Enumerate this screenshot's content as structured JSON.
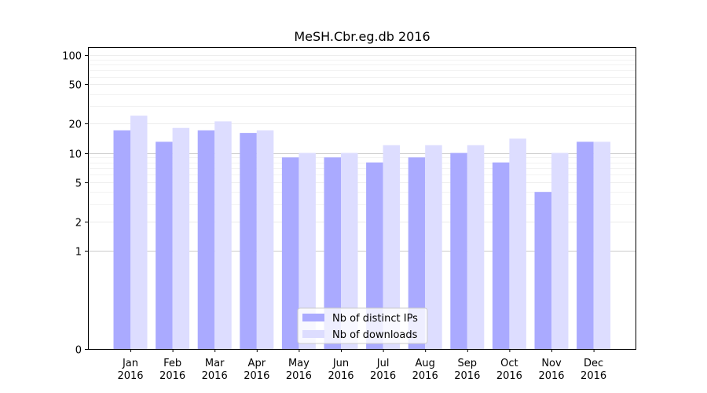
{
  "chart_data": {
    "type": "bar",
    "title": "MeSH.Cbr.eg.db 2016",
    "xlabel": "",
    "ylabel": "",
    "yscale": "symlog",
    "ylim": [
      0,
      120
    ],
    "yticks": [
      {
        "value": 0,
        "label": "0"
      },
      {
        "value": 1,
        "label": "1"
      },
      {
        "value": 2,
        "label": "2"
      },
      {
        "value": 5,
        "label": "5"
      },
      {
        "value": 10,
        "label": "10"
      },
      {
        "value": 20,
        "label": "20"
      },
      {
        "value": 50,
        "label": "50"
      },
      {
        "value": 100,
        "label": "100"
      }
    ],
    "grid": true,
    "legend_position": "bottom-center",
    "categories": [
      [
        "Jan",
        "2016"
      ],
      [
        "Feb",
        "2016"
      ],
      [
        "Mar",
        "2016"
      ],
      [
        "Apr",
        "2016"
      ],
      [
        "May",
        "2016"
      ],
      [
        "Jun",
        "2016"
      ],
      [
        "Jul",
        "2016"
      ],
      [
        "Aug",
        "2016"
      ],
      [
        "Sep",
        "2016"
      ],
      [
        "Oct",
        "2016"
      ],
      [
        "Nov",
        "2016"
      ],
      [
        "Dec",
        "2016"
      ]
    ],
    "series": [
      {
        "name": "Nb of distinct IPs",
        "color": "#aaaaff",
        "values": [
          17,
          13,
          17,
          16,
          9,
          9,
          8,
          9,
          10,
          8,
          4,
          13
        ]
      },
      {
        "name": "Nb of downloads",
        "color": "#ddddff",
        "values": [
          24,
          18,
          21,
          17,
          10,
          10,
          12,
          12,
          12,
          14,
          10,
          13
        ]
      }
    ]
  }
}
